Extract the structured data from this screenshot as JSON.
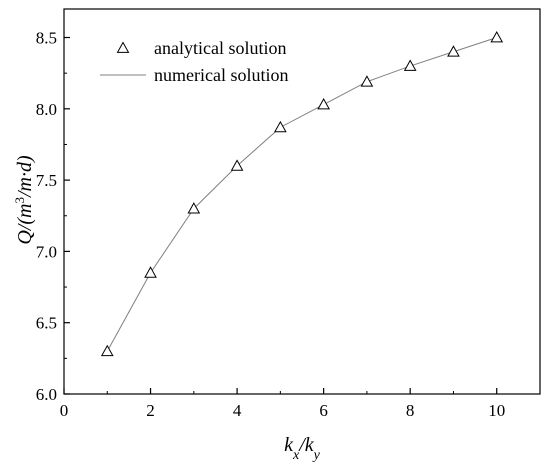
{
  "chart_data": {
    "type": "line",
    "title": "",
    "xlabel": "kx/ky",
    "ylabel": "Q/(m3/m·d)",
    "xlim": [
      0,
      11
    ],
    "ylim": [
      6.0,
      8.7
    ],
    "x_ticks": [
      0,
      2,
      4,
      6,
      8,
      10
    ],
    "y_ticks": [
      6.0,
      6.5,
      7.0,
      7.5,
      8.0,
      8.5
    ],
    "x_tick_labels": [
      "0",
      "2",
      "4",
      "6",
      "8",
      "10"
    ],
    "y_tick_labels": [
      "6.0",
      "6.5",
      "7.0",
      "7.5",
      "8.0",
      "8.5"
    ],
    "grid": false,
    "legend_position": "top-left",
    "x": [
      1,
      2,
      3,
      4,
      5,
      6,
      7,
      8,
      9,
      10
    ],
    "series": [
      {
        "name": "analytical solution",
        "marker": "triangle",
        "values": [
          6.3,
          6.85,
          7.3,
          7.6,
          7.87,
          8.03,
          8.19,
          8.3,
          8.4,
          8.5
        ]
      },
      {
        "name": "numerical solution",
        "marker": "line",
        "color": "#808080",
        "values": [
          6.3,
          6.85,
          7.3,
          7.6,
          7.87,
          8.03,
          8.19,
          8.3,
          8.4,
          8.5
        ]
      }
    ]
  }
}
